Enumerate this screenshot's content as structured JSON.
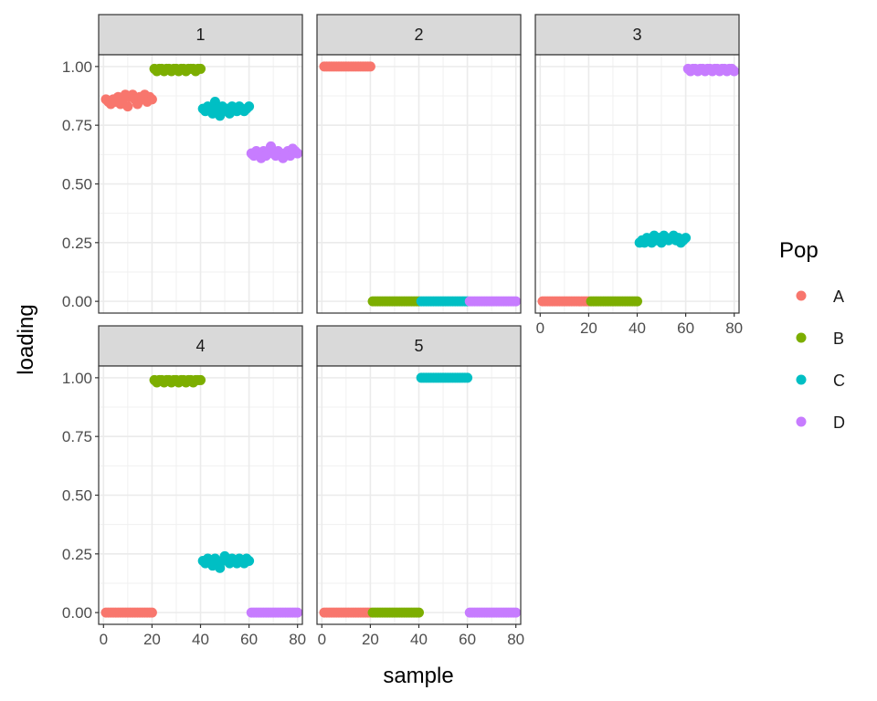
{
  "chart_data": {
    "type": "scatter",
    "facet_layout": "wrap",
    "xlabel": "sample",
    "ylabel": "loading",
    "xlim": [
      -2,
      82
    ],
    "ylim": [
      -0.05,
      1.05
    ],
    "x_ticks": [
      0,
      20,
      40,
      60,
      80
    ],
    "x_tick_labels": [
      "0",
      "20",
      "40",
      "60",
      "80"
    ],
    "y_ticks": [
      0,
      0.25,
      0.5,
      0.75,
      1
    ],
    "y_tick_labels": [
      "0.00",
      "0.25",
      "0.50",
      "0.75",
      "1.00"
    ],
    "grid": true,
    "legend": {
      "title": "Pop",
      "position": "right",
      "entries": [
        {
          "label": "A",
          "color": "#F8766D"
        },
        {
          "label": "B",
          "color": "#7CAE00"
        },
        {
          "label": "C",
          "color": "#00BFC4"
        },
        {
          "label": "D",
          "color": "#C77CFF"
        }
      ]
    },
    "groups": [
      {
        "pop": "A",
        "x_start": 1,
        "x_end": 20
      },
      {
        "pop": "B",
        "x_start": 21,
        "x_end": 40
      },
      {
        "pop": "C",
        "x_start": 41,
        "x_end": 60
      },
      {
        "pop": "D",
        "x_start": 61,
        "x_end": 80
      }
    ],
    "facets": [
      {
        "label": "1",
        "series": [
          {
            "pop": "A",
            "values": [
              0.86,
              0.85,
              0.84,
              0.86,
              0.85,
              0.87,
              0.84,
              0.86,
              0.88,
              0.83,
              0.87,
              0.88,
              0.86,
              0.84,
              0.87,
              0.86,
              0.88,
              0.85,
              0.87,
              0.86
            ]
          },
          {
            "pop": "B",
            "values": [
              0.99,
              0.98,
              0.99,
              0.99,
              0.98,
              0.99,
              0.99,
              0.98,
              0.99,
              0.99,
              0.98,
              0.99,
              0.99,
              0.98,
              0.99,
              0.99,
              0.99,
              0.98,
              0.99,
              0.99
            ]
          },
          {
            "pop": "C",
            "values": [
              0.82,
              0.81,
              0.83,
              0.82,
              0.8,
              0.85,
              0.82,
              0.79,
              0.83,
              0.81,
              0.82,
              0.8,
              0.83,
              0.82,
              0.81,
              0.83,
              0.82,
              0.81,
              0.82,
              0.83
            ]
          },
          {
            "pop": "D",
            "values": [
              0.63,
              0.62,
              0.64,
              0.63,
              0.61,
              0.64,
              0.62,
              0.63,
              0.66,
              0.63,
              0.62,
              0.64,
              0.63,
              0.61,
              0.63,
              0.64,
              0.62,
              0.65,
              0.64,
              0.63
            ]
          }
        ]
      },
      {
        "label": "2",
        "series": [
          {
            "pop": "A",
            "values": [
              1.0,
              1.0,
              1.0,
              1.0,
              1.0,
              1.0,
              1.0,
              1.0,
              1.0,
              1.0,
              1.0,
              1.0,
              1.0,
              1.0,
              1.0,
              1.0,
              1.0,
              1.0,
              1.0,
              1.0
            ]
          },
          {
            "pop": "B",
            "values": [
              0,
              0,
              0,
              0,
              0,
              0,
              0,
              0,
              0,
              0,
              0,
              0,
              0,
              0,
              0,
              0,
              0,
              0,
              0,
              0
            ]
          },
          {
            "pop": "C",
            "values": [
              0,
              0,
              0,
              0,
              0,
              0,
              0,
              0,
              0,
              0,
              0,
              0,
              0,
              0,
              0,
              0,
              0,
              0,
              0,
              0
            ]
          },
          {
            "pop": "D",
            "values": [
              0,
              0,
              0,
              0,
              0,
              0,
              0,
              0,
              0,
              0,
              0,
              0,
              0,
              0,
              0,
              0,
              0,
              0,
              0,
              0
            ]
          }
        ]
      },
      {
        "label": "3",
        "series": [
          {
            "pop": "A",
            "values": [
              0,
              0,
              0,
              0,
              0,
              0,
              0,
              0,
              0,
              0,
              0,
              0,
              0,
              0,
              0,
              0,
              0,
              0,
              0,
              0
            ]
          },
          {
            "pop": "B",
            "values": [
              0,
              0,
              0,
              0,
              0,
              0,
              0,
              0,
              0,
              0,
              0,
              0,
              0,
              0,
              0,
              0,
              0,
              0,
              0,
              0
            ]
          },
          {
            "pop": "C",
            "values": [
              0.25,
              0.26,
              0.25,
              0.27,
              0.26,
              0.25,
              0.28,
              0.26,
              0.27,
              0.25,
              0.28,
              0.27,
              0.26,
              0.27,
              0.28,
              0.26,
              0.27,
              0.25,
              0.26,
              0.27
            ]
          },
          {
            "pop": "D",
            "values": [
              0.99,
              0.98,
              0.99,
              0.99,
              0.98,
              0.99,
              0.99,
              0.98,
              0.99,
              0.99,
              0.98,
              0.99,
              0.99,
              0.98,
              0.99,
              0.99,
              0.98,
              0.99,
              0.99,
              0.98
            ]
          }
        ]
      },
      {
        "label": "4",
        "series": [
          {
            "pop": "A",
            "values": [
              0,
              0,
              0,
              0,
              0,
              0,
              0,
              0,
              0,
              0,
              0,
              0,
              0,
              0,
              0,
              0,
              0,
              0,
              0,
              0
            ]
          },
          {
            "pop": "B",
            "values": [
              0.99,
              0.98,
              0.99,
              0.99,
              0.98,
              0.99,
              0.99,
              0.98,
              0.99,
              0.99,
              0.98,
              0.99,
              0.99,
              0.98,
              0.99,
              0.99,
              0.98,
              0.99,
              0.99,
              0.99
            ]
          },
          {
            "pop": "C",
            "values": [
              0.22,
              0.21,
              0.23,
              0.22,
              0.2,
              0.23,
              0.21,
              0.19,
              0.22,
              0.24,
              0.22,
              0.21,
              0.23,
              0.22,
              0.21,
              0.23,
              0.22,
              0.21,
              0.23,
              0.22
            ]
          },
          {
            "pop": "D",
            "values": [
              0,
              0,
              0,
              0,
              0,
              0,
              0,
              0,
              0,
              0,
              0,
              0,
              0,
              0,
              0,
              0,
              0,
              0,
              0,
              0
            ]
          }
        ]
      },
      {
        "label": "5",
        "series": [
          {
            "pop": "A",
            "values": [
              0,
              0,
              0,
              0,
              0,
              0,
              0,
              0,
              0,
              0,
              0,
              0,
              0,
              0,
              0,
              0,
              0,
              0,
              0,
              0
            ]
          },
          {
            "pop": "B",
            "values": [
              0,
              0,
              0,
              0,
              0,
              0,
              0,
              0,
              0,
              0,
              0,
              0,
              0,
              0,
              0,
              0,
              0,
              0,
              0,
              0
            ]
          },
          {
            "pop": "C",
            "values": [
              1.0,
              1.0,
              1.0,
              1.0,
              1.0,
              1.0,
              1.0,
              1.0,
              1.0,
              1.0,
              1.0,
              1.0,
              1.0,
              1.0,
              1.0,
              1.0,
              1.0,
              1.0,
              1.0,
              1.0
            ]
          },
          {
            "pop": "D",
            "values": [
              0,
              0,
              0,
              0,
              0,
              0,
              0,
              0,
              0,
              0,
              0,
              0,
              0,
              0,
              0,
              0,
              0,
              0,
              0,
              0
            ]
          }
        ]
      }
    ]
  }
}
